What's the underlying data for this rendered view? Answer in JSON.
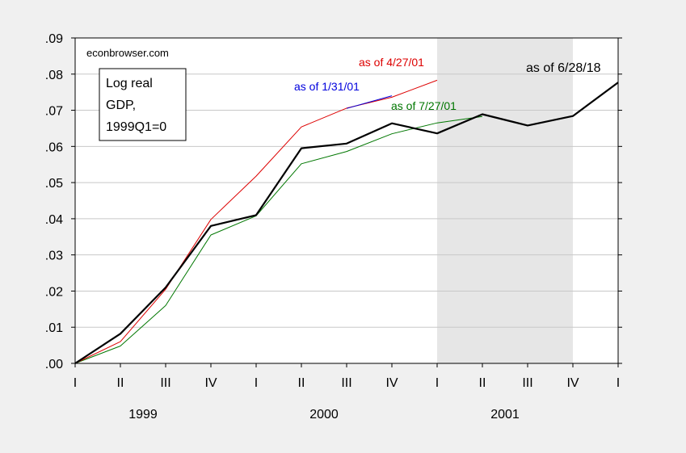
{
  "chart_data": {
    "type": "line",
    "source_label": "econbrowser.com",
    "legend_text": [
      "Log real",
      "GDP,",
      "1999Q1=0"
    ],
    "x_categories": [
      "I",
      "II",
      "III",
      "IV",
      "I",
      "II",
      "III",
      "IV",
      "I",
      "II",
      "III",
      "IV",
      "I"
    ],
    "year_labels": [
      {
        "label": "1999",
        "center_index": 2
      },
      {
        "label": "2000",
        "center_index": 6
      },
      {
        "label": "2001",
        "center_index": 10
      }
    ],
    "ylim": [
      0,
      0.09
    ],
    "yticks": [
      ".00",
      ".01",
      ".02",
      ".03",
      ".04",
      ".05",
      ".06",
      ".07",
      ".08",
      ".09"
    ],
    "grid": true,
    "recession_shading": {
      "from_index": 8,
      "to_index": 11,
      "color": "#e6e6e6"
    },
    "series": [
      {
        "name": "as of 6/28/18",
        "color": "#000000",
        "values": [
          0.0,
          0.0082,
          0.021,
          0.038,
          0.041,
          0.0595,
          0.0608,
          0.0664,
          0.0636,
          0.0689,
          0.0658,
          0.0684,
          0.0777
        ]
      },
      {
        "name": "as of 4/27/01",
        "color": "#dd0000",
        "values": [
          0.0,
          0.006,
          0.0205,
          0.0398,
          0.0518,
          0.0654,
          0.0706,
          0.0736,
          0.0783
        ]
      },
      {
        "name": "as of 1/31/01",
        "color": "#0000dd",
        "values": [
          null,
          null,
          null,
          null,
          null,
          null,
          0.0705,
          0.074
        ]
      },
      {
        "name": "as of 7/27/01",
        "color": "#007700",
        "values": [
          0.0,
          0.0048,
          0.016,
          0.0355,
          0.0408,
          0.0552,
          0.0586,
          0.0635,
          0.0665,
          0.0683
        ]
      }
    ]
  }
}
